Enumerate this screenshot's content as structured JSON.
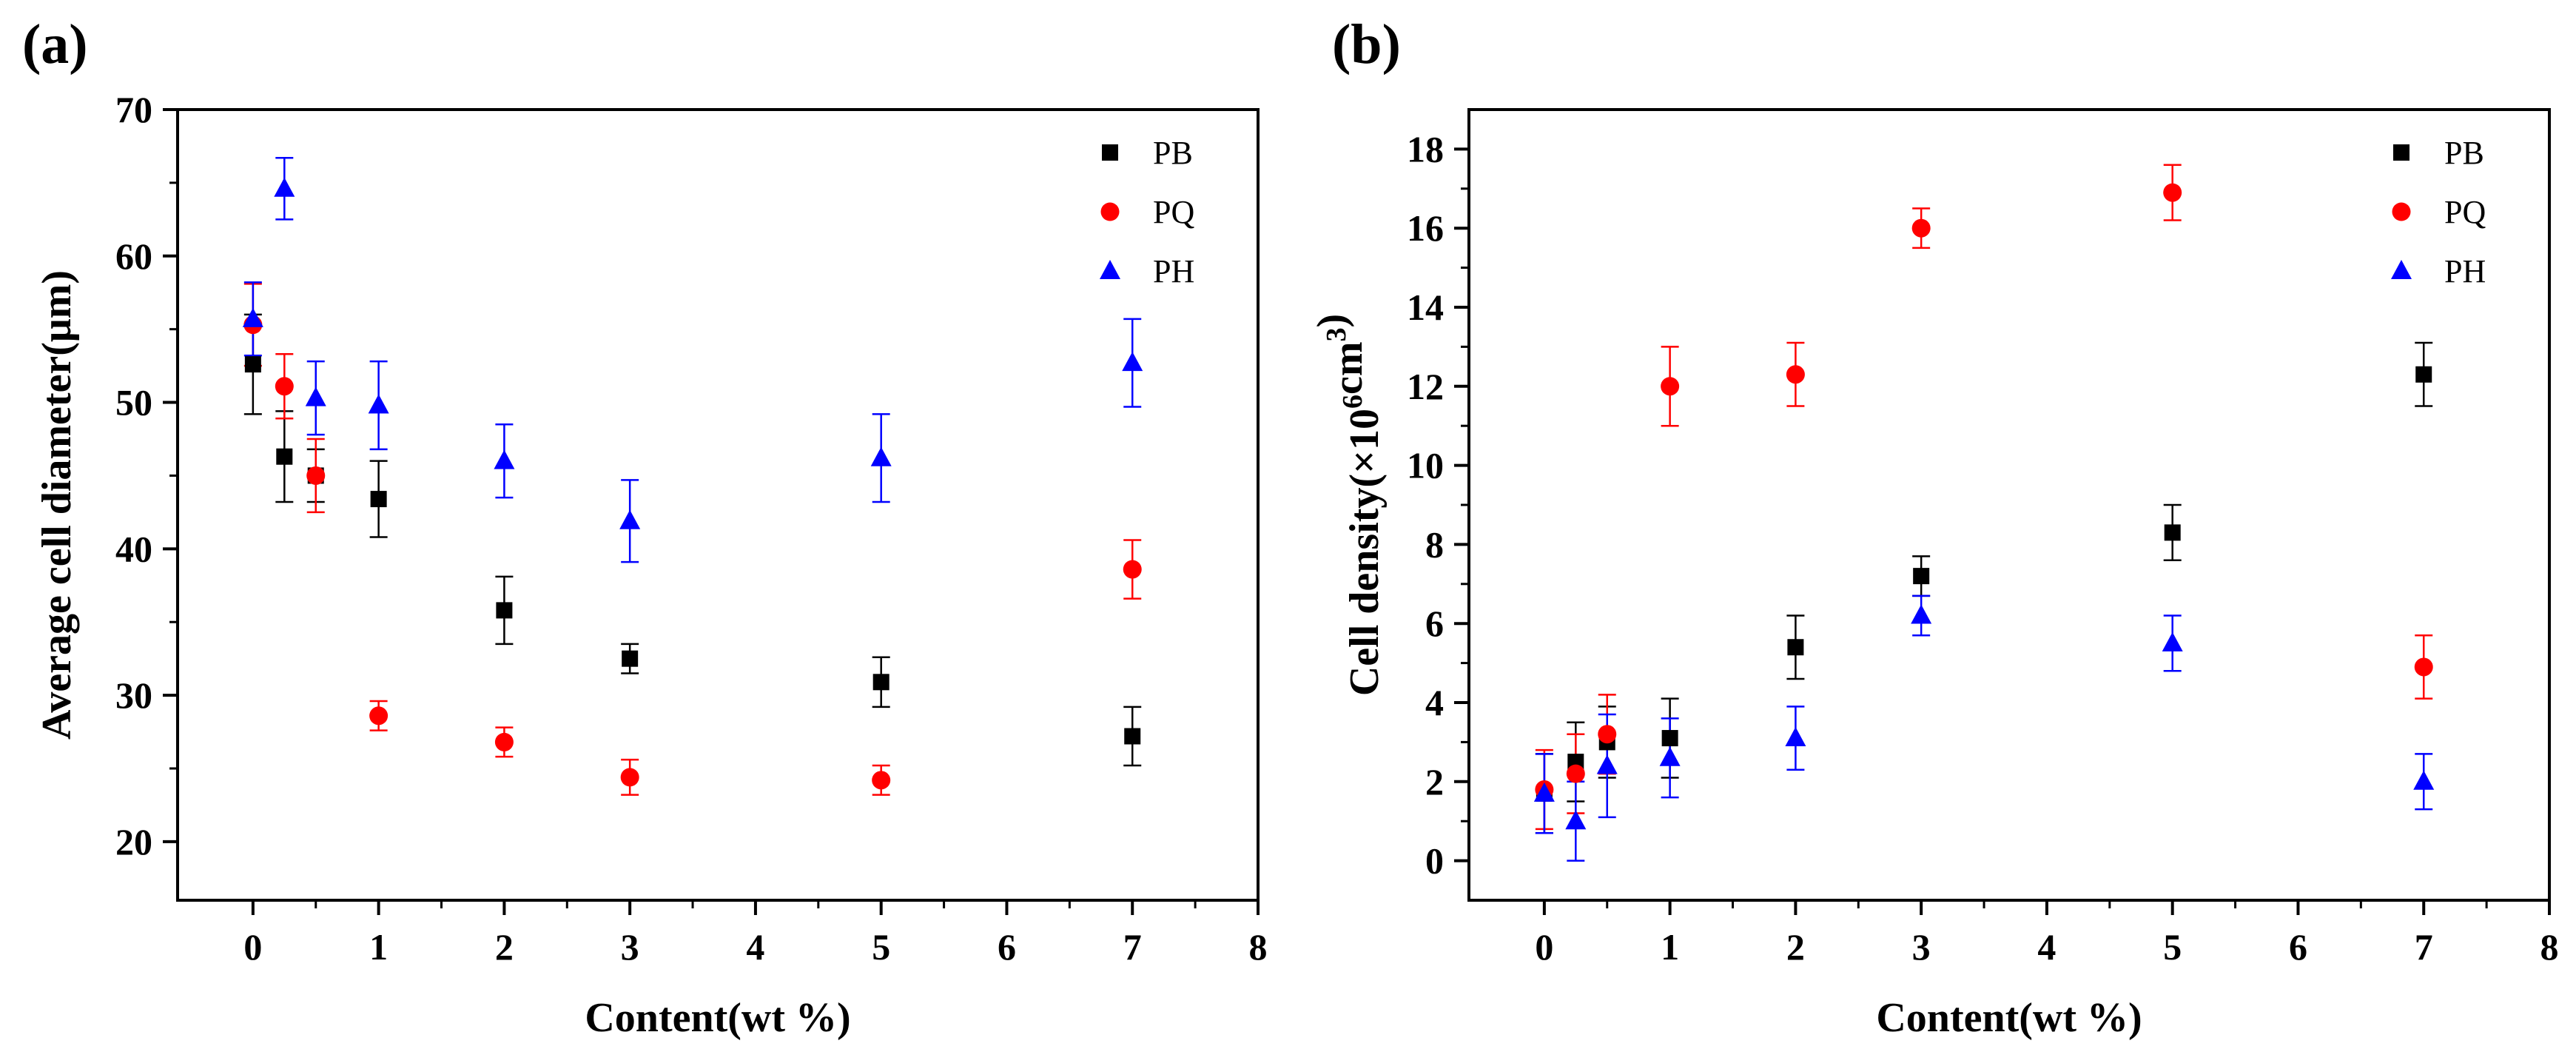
{
  "colors": {
    "PB": "#000000",
    "PQ": "#ff0000",
    "PH": "#0000ff"
  },
  "chart_data": [
    {
      "type": "scatter",
      "panel_label": "(a)",
      "xlabel": "Content(wt %)",
      "ylabel": "Average cell diameter(μm)",
      "xlim": [
        -0.6,
        8
      ],
      "ylim": [
        16,
        70
      ],
      "x_ticks": [
        0,
        1,
        2,
        3,
        4,
        5,
        6,
        7,
        8
      ],
      "y_ticks": [
        20,
        30,
        40,
        50,
        60,
        70
      ],
      "legend_position": "top-right",
      "series": [
        {
          "name": "PB",
          "marker": "square",
          "x": [
            0,
            0.25,
            0.5,
            1,
            2,
            3,
            5,
            7
          ],
          "y": [
            52.6,
            46.3,
            45.0,
            43.4,
            35.8,
            32.5,
            30.9,
            27.2
          ],
          "err": [
            3.4,
            3.1,
            1.8,
            2.6,
            2.3,
            1.0,
            1.7,
            2.0
          ]
        },
        {
          "name": "PQ",
          "marker": "circle",
          "x": [
            0,
            0.25,
            0.5,
            1,
            2,
            3,
            5,
            7
          ],
          "y": [
            55.3,
            51.1,
            45.0,
            28.6,
            26.8,
            24.4,
            24.2,
            38.6
          ],
          "err": [
            2.8,
            2.2,
            2.5,
            1.0,
            1.0,
            1.2,
            1.0,
            2.0
          ]
        },
        {
          "name": "PH",
          "marker": "triangle",
          "x": [
            0,
            0.25,
            0.5,
            1,
            2,
            3,
            5,
            7
          ],
          "y": [
            55.7,
            64.6,
            50.3,
            49.8,
            46.0,
            41.9,
            46.2,
            52.7
          ],
          "err": [
            2.5,
            2.1,
            2.5,
            3.0,
            2.5,
            2.8,
            3.0,
            3.0
          ]
        }
      ]
    },
    {
      "type": "scatter",
      "panel_label": "(b)",
      "xlabel": "Content(wt %)",
      "ylabel": "Cell density(×10⁶cm³)",
      "xlim": [
        -0.6,
        8
      ],
      "ylim": [
        -1,
        19
      ],
      "x_ticks": [
        0,
        1,
        2,
        3,
        4,
        5,
        6,
        7,
        8
      ],
      "y_ticks": [
        0,
        2,
        4,
        6,
        8,
        10,
        12,
        14,
        16,
        18
      ],
      "legend_position": "top-right",
      "series": [
        {
          "name": "PB",
          "marker": "square",
          "x": [
            0,
            0.25,
            0.5,
            1,
            2,
            3,
            5,
            7
          ],
          "y": [
            1.7,
            2.5,
            3.0,
            3.1,
            5.4,
            7.2,
            8.3,
            12.3
          ],
          "err": [
            1.0,
            1.0,
            0.9,
            1.0,
            0.8,
            0.5,
            0.7,
            0.8
          ]
        },
        {
          "name": "PQ",
          "marker": "circle",
          "x": [
            0,
            0.25,
            0.5,
            1,
            2,
            3,
            5,
            7
          ],
          "y": [
            1.8,
            2.2,
            3.2,
            12.0,
            12.3,
            16.0,
            16.9,
            4.9
          ],
          "err": [
            1.0,
            1.0,
            1.0,
            1.0,
            0.8,
            0.5,
            0.7,
            0.8
          ]
        },
        {
          "name": "PH",
          "marker": "triangle",
          "x": [
            0,
            0.25,
            0.5,
            1,
            2,
            3,
            5,
            7
          ],
          "y": [
            1.7,
            1.0,
            2.4,
            2.6,
            3.1,
            6.2,
            5.5,
            2.0
          ],
          "err": [
            1.0,
            1.0,
            1.3,
            1.0,
            0.8,
            0.5,
            0.7,
            0.7
          ]
        }
      ]
    }
  ]
}
